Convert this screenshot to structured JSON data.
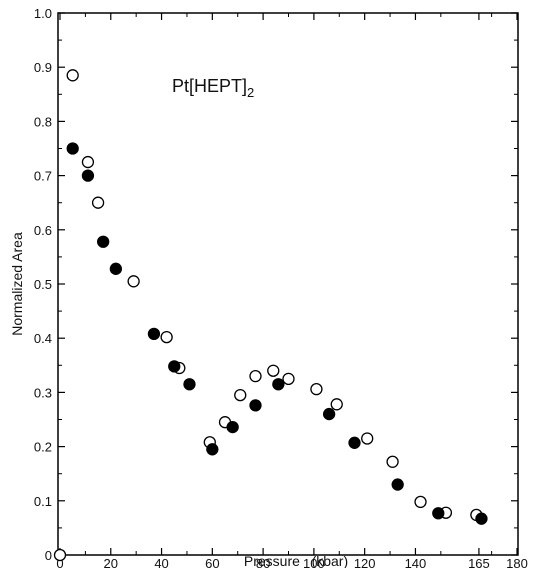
{
  "chart_data": {
    "type": "scatter",
    "title": "Pt[HEPT]",
    "title_subscript": "2",
    "xlabel": "Pressure   (kbar)",
    "ylabel": "Normalized Area",
    "xlim": [
      0,
      180
    ],
    "ylim": [
      0,
      1.0
    ],
    "x_ticks": [
      0,
      20,
      40,
      60,
      80,
      100,
      120,
      140,
      165,
      180
    ],
    "x_tick_labels": [
      "0",
      "20",
      "40",
      "60",
      "80",
      "100",
      "120",
      "140",
      "165",
      "180"
    ],
    "y_ticks": [
      0,
      0.1,
      0.2,
      0.3,
      0.4,
      0.5,
      0.6,
      0.7,
      0.8,
      0.9,
      1.0
    ],
    "y_tick_labels": [
      "0",
      "0.1",
      "0.2",
      "0.3",
      "0.4",
      "0.5",
      "0.6",
      "0.7",
      "0.8",
      "0.9",
      "1.0"
    ],
    "grid": false,
    "series": [
      {
        "marker": "open-circle",
        "color": "#000000",
        "points": [
          [
            0,
            0
          ],
          [
            5,
            0.885
          ],
          [
            11,
            0.725
          ],
          [
            15,
            0.65
          ],
          [
            29,
            0.505
          ],
          [
            42,
            0.402
          ],
          [
            47,
            0.345
          ],
          [
            59,
            0.208
          ],
          [
            65,
            0.245
          ],
          [
            71,
            0.295
          ],
          [
            77,
            0.33
          ],
          [
            84,
            0.34
          ],
          [
            90,
            0.325
          ],
          [
            101,
            0.306
          ],
          [
            109,
            0.278
          ],
          [
            121,
            0.215
          ],
          [
            131,
            0.172
          ],
          [
            142,
            0.098
          ],
          [
            152,
            0.078
          ],
          [
            164,
            0.074
          ]
        ]
      },
      {
        "marker": "filled-circle",
        "color": "#000000",
        "points": [
          [
            5,
            0.75
          ],
          [
            11,
            0.7
          ],
          [
            17,
            0.578
          ],
          [
            22,
            0.528
          ],
          [
            37,
            0.408
          ],
          [
            45,
            0.348
          ],
          [
            51,
            0.315
          ],
          [
            60,
            0.195
          ],
          [
            68,
            0.236
          ],
          [
            77,
            0.276
          ],
          [
            86,
            0.315
          ],
          [
            106,
            0.26
          ],
          [
            116,
            0.207
          ],
          [
            133,
            0.13
          ],
          [
            149,
            0.077
          ],
          [
            166,
            0.067
          ]
        ]
      }
    ]
  }
}
